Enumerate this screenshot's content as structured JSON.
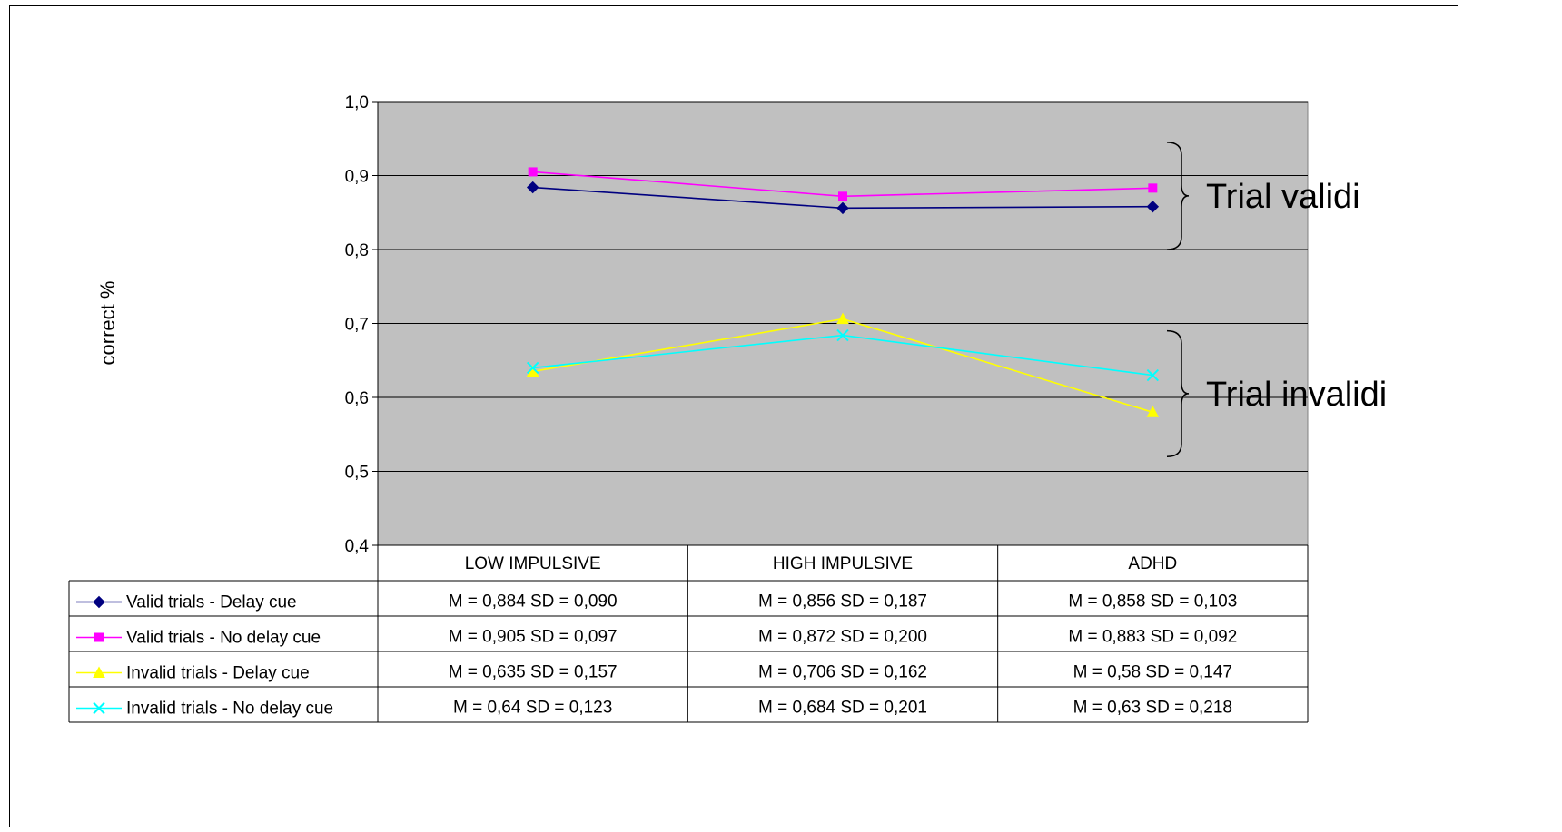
{
  "chart_data": {
    "type": "line",
    "title": "",
    "xlabel": "",
    "ylabel": "correct %",
    "ylim": [
      0.4,
      1.0
    ],
    "y_ticks": [
      "0,4",
      "0,5",
      "0,6",
      "0,7",
      "0,8",
      "0,9",
      "1,0"
    ],
    "y_tick_values": [
      0.4,
      0.5,
      0.6,
      0.7,
      0.8,
      0.9,
      1.0
    ],
    "grid": true,
    "legend_placement": "data-table",
    "categories": [
      "LOW IMPULSIVE",
      "HIGH IMPULSIVE",
      "ADHD"
    ],
    "series": [
      {
        "name": "Valid trials - Delay cue",
        "color": "#000080",
        "marker": "diamond",
        "values": [
          0.884,
          0.856,
          0.858
        ],
        "table": [
          "M = 0,884 SD = 0,090",
          "M = 0,856 SD = 0,187",
          "M = 0,858 SD = 0,103"
        ]
      },
      {
        "name": "Valid trials - No delay cue",
        "color": "#ff00ff",
        "marker": "square",
        "values": [
          0.905,
          0.872,
          0.883
        ],
        "table": [
          "M = 0,905 SD = 0,097",
          "M = 0,872 SD = 0,200",
          "M = 0,883 SD = 0,092"
        ]
      },
      {
        "name": "Invalid trials - Delay cue",
        "color": "#ffff00",
        "marker": "triangle",
        "values": [
          0.635,
          0.706,
          0.58
        ],
        "table": [
          "M = 0,635 SD = 0,157",
          "M = 0,706 SD = 0,162",
          "M = 0,58 SD = 0,147"
        ]
      },
      {
        "name": "Invalid trials - No delay cue",
        "color": "#00ffff",
        "marker": "x",
        "values": [
          0.64,
          0.684,
          0.63
        ],
        "table": [
          "M = 0,64 SD = 0,123",
          "M = 0,684 SD = 0,201",
          "M = 0,63 SD = 0,218"
        ]
      }
    ],
    "annotations": [
      {
        "text": "Trial validi",
        "range": [
          0.8,
          0.945
        ]
      },
      {
        "text": "Trial invalidi",
        "range": [
          0.52,
          0.69
        ]
      }
    ],
    "colors": {
      "plot_bg": "#c0c0c0",
      "grid": "#000000"
    }
  }
}
